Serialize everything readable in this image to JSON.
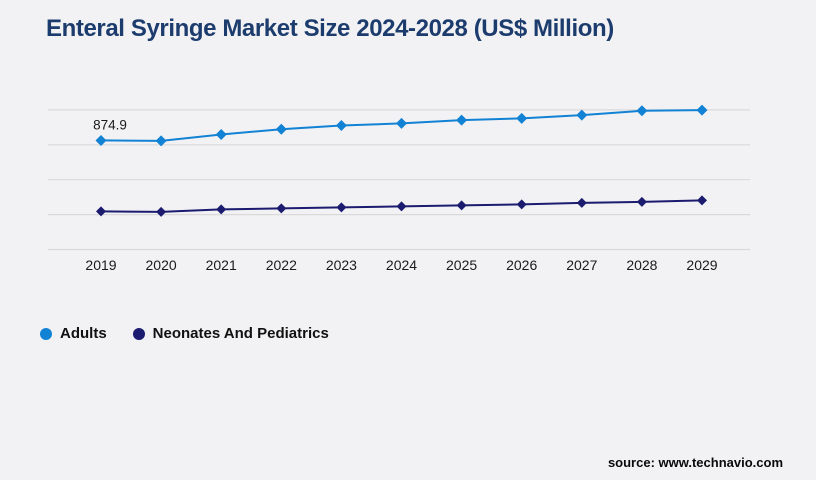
{
  "title": "Enteral Syringe Market Size 2024-2028 (US$ Million)",
  "source": "source: www.technavio.com",
  "colors": {
    "background": "#f2f2f4",
    "title": "#1d3c6e",
    "grid": "#d9d9da",
    "axis_text": "#1a1a1a",
    "adults": "#1282d4",
    "neonates": "#1b1b70"
  },
  "chart_data": {
    "type": "line",
    "title": "Enteral Syringe Market Size 2024-2028 (US$ Million)",
    "x": [
      "2019",
      "2020",
      "2021",
      "2022",
      "2023",
      "2024",
      "2025",
      "2026",
      "2027",
      "2028",
      "2029"
    ],
    "series": [
      {
        "name": "Adults",
        "color": "#1282d4",
        "values": [
          874.9,
          871,
          923,
          965,
          995,
          1012,
          1038,
          1052,
          1078,
          1113,
          1118
        ]
      },
      {
        "name": "Neonates And Pediatrics",
        "color": "#1b1b70",
        "values": [
          306,
          302,
          322,
          330,
          338,
          346,
          354,
          362,
          374,
          382,
          394
        ]
      }
    ],
    "annotations": [
      {
        "text": "874.9",
        "series": 0,
        "index": 0
      }
    ],
    "ylim": [
      0,
      1400
    ],
    "gridline_count": 5,
    "grid": "horizontal-only",
    "legend_position": "bottom-left"
  }
}
